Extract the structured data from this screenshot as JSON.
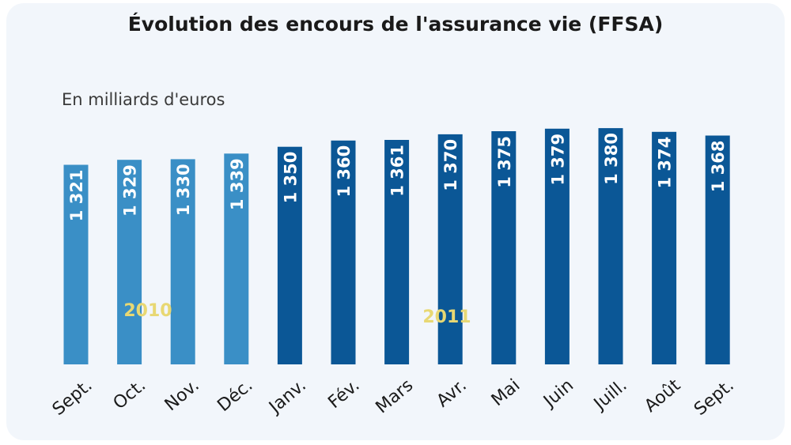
{
  "chart_data": {
    "type": "bar",
    "title": "Évolution des encours de l'assurance vie (FFSA)",
    "subtitle": "En milliards d'euros",
    "categories": [
      "Sept.",
      "Oct.",
      "Nov.",
      "Déc.",
      "Janv.",
      "Fév.",
      "Mars",
      "Avr.",
      "Mai",
      "Juin",
      "Juill.",
      "Août",
      "Sept."
    ],
    "values": [
      1321,
      1329,
      1330,
      1339,
      1350,
      1360,
      1361,
      1370,
      1375,
      1379,
      1380,
      1374,
      1368
    ],
    "value_labels": [
      "1 321",
      "1 329",
      "1 330",
      "1 339",
      "1 350",
      "1 360",
      "1 361",
      "1 370",
      "1 375",
      "1 379",
      "1 380",
      "1 374",
      "1 368"
    ],
    "year_groups": [
      {
        "label": "2010",
        "first": 0,
        "last": 3,
        "color": "#3a8fc6"
      },
      {
        "label": "2011",
        "first": 4,
        "last": 12,
        "color": "#0b5796"
      }
    ],
    "year_label_color": "#e8d873",
    "ylabel": "",
    "xlabel": ""
  }
}
